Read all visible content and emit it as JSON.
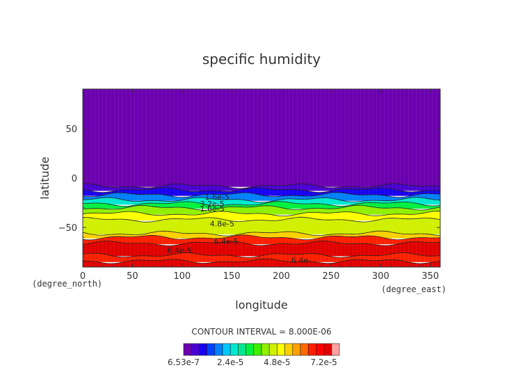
{
  "chart_data": {
    "type": "heatmap",
    "title": "specific humidity",
    "xlabel": "longitude",
    "ylabel": "latitude",
    "x_unit": "(degree_east)",
    "y_unit": "(degree_north)",
    "xlim": [
      0,
      360
    ],
    "ylim": [
      -90,
      90
    ],
    "x_ticks": [
      "0",
      "50",
      "100",
      "150",
      "200",
      "250",
      "300",
      "350"
    ],
    "y_ticks": [
      "50",
      "0",
      "−50"
    ],
    "contour_interval_label": "CONTOUR INTERVAL = 8.000E-06",
    "contour_labels": [
      {
        "text": "1.6e-5",
        "lon": 123,
        "lat": -19
      },
      {
        "text": "3.2e-5",
        "lon": 118,
        "lat": -26
      },
      {
        "text": "1.6e-5",
        "lon": 118,
        "lat": -31
      },
      {
        "text": "4.8e-5",
        "lon": 128,
        "lat": -46
      },
      {
        "text": "6.4e-5",
        "lon": 132,
        "lat": -64
      },
      {
        "text": "6.4e-5",
        "lon": 85,
        "lat": -73
      },
      {
        "text": "6.4e-",
        "lon": 210,
        "lat": -83
      }
    ],
    "zonal_profile": {
      "bands": [
        {
          "lat_top": 90,
          "lat_bottom": -8,
          "value": 6.53e-07
        },
        {
          "lat_top": -8,
          "lat_bottom": -12,
          "value": 8e-06
        },
        {
          "lat_top": -12,
          "lat_bottom": -17,
          "value": 1.2e-05
        },
        {
          "lat_top": -17,
          "lat_bottom": -22,
          "value": 2e-05
        },
        {
          "lat_top": -22,
          "lat_bottom": -26,
          "value": 2.8e-05
        },
        {
          "lat_top": -26,
          "lat_bottom": -30,
          "value": 3.6e-05
        },
        {
          "lat_top": -30,
          "lat_bottom": -36,
          "value": 4.4e-05
        },
        {
          "lat_top": -36,
          "lat_bottom": -42,
          "value": 5.2e-05
        },
        {
          "lat_top": -42,
          "lat_bottom": -56,
          "value": 4.8e-05
        },
        {
          "lat_top": -56,
          "lat_bottom": -60,
          "value": 5.6e-05
        },
        {
          "lat_top": -60,
          "lat_bottom": -66,
          "value": 6.8e-05
        },
        {
          "lat_top": -66,
          "lat_bottom": -78,
          "value": 7.4e-05
        },
        {
          "lat_top": -78,
          "lat_bottom": -84,
          "value": 6.8e-05
        },
        {
          "lat_top": -84,
          "lat_bottom": -90,
          "value": 7.4e-05
        }
      ]
    },
    "colorbar": {
      "colors": [
        "#6a00b0",
        "#4a00d0",
        "#1800f0",
        "#0040ff",
        "#0080ff",
        "#00c8ff",
        "#00e8d0",
        "#00e890",
        "#00f040",
        "#40f000",
        "#90f000",
        "#d0f000",
        "#ffff00",
        "#ffd000",
        "#ffa000",
        "#ff6a00",
        "#ff2000",
        "#ff0000",
        "#e00000",
        "#ffa0a0"
      ],
      "tick_labels": [
        "6.53e-7",
        "2.4e-5",
        "4.8e-5",
        "7.2e-5"
      ]
    }
  }
}
